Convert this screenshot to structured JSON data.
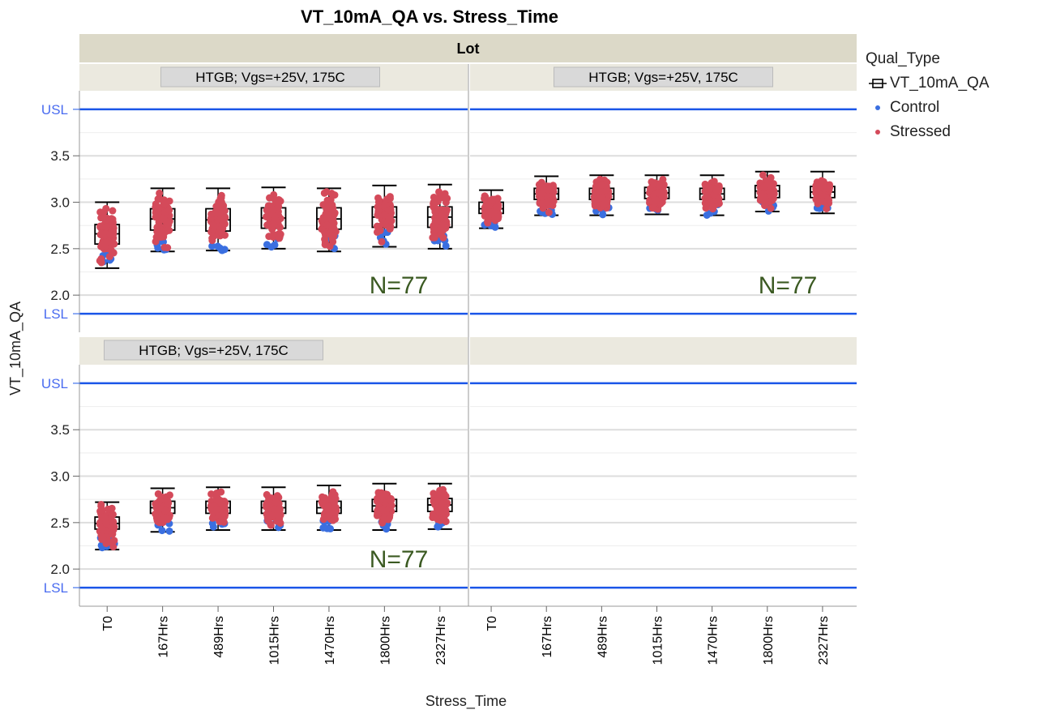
{
  "chart_data": {
    "type": "box",
    "title": "VT_10mA_QA vs. Stress_Time",
    "xlabel": "Stress_Time",
    "ylabel": "VT_10mA_QA",
    "group_header": "Lot",
    "categories": [
      "T0",
      "167Hrs",
      "489Hrs",
      "1015Hrs",
      "1470Hrs",
      "1800Hrs",
      "2327Hrs"
    ],
    "ylim": [
      1.6,
      4.2
    ],
    "yticks": [
      2.0,
      2.5,
      3.0,
      3.5
    ],
    "ytick_labels": [
      "2.0",
      "2.5",
      "3.0",
      "3.5"
    ],
    "ref_lines": [
      {
        "label": "USL",
        "value": 4.0
      },
      {
        "label": "LSL",
        "value": 1.8
      }
    ],
    "legend": {
      "title": "Qual_Type",
      "items": [
        {
          "label": "VT_10mA_QA",
          "kind": "box"
        },
        {
          "label": "Control",
          "color": "#3a6fe0"
        },
        {
          "label": "Stressed",
          "color": "#d44a5a"
        }
      ]
    },
    "panels": [
      {
        "label": "HTGB; Vgs=+25V, 175C",
        "annotation": "N=77",
        "boxes": [
          [
            2.29,
            2.55,
            2.66,
            2.76,
            3.0
          ],
          [
            2.47,
            2.7,
            2.82,
            2.93,
            3.15
          ],
          [
            2.48,
            2.69,
            2.81,
            2.93,
            3.15
          ],
          [
            2.5,
            2.72,
            2.83,
            2.94,
            3.16
          ],
          [
            2.47,
            2.71,
            2.82,
            2.94,
            3.15
          ],
          [
            2.52,
            2.73,
            2.84,
            2.95,
            3.18
          ],
          [
            2.5,
            2.73,
            2.84,
            2.95,
            3.19
          ]
        ]
      },
      {
        "label": "HTGB; Vgs=+25V, 175C",
        "annotation": "N=77",
        "boxes": [
          [
            2.72,
            2.88,
            2.93,
            3.0,
            3.13
          ],
          [
            2.86,
            3.03,
            3.09,
            3.15,
            3.28
          ],
          [
            2.86,
            3.03,
            3.09,
            3.15,
            3.29
          ],
          [
            2.87,
            3.04,
            3.1,
            3.16,
            3.29
          ],
          [
            2.86,
            3.03,
            3.09,
            3.15,
            3.29
          ],
          [
            2.9,
            3.05,
            3.12,
            3.18,
            3.33
          ],
          [
            2.88,
            3.05,
            3.11,
            3.17,
            3.33
          ]
        ]
      },
      {
        "label": "HTGB; Vgs=+25V, 175C",
        "annotation": "N=77",
        "boxes": [
          [
            2.21,
            2.43,
            2.49,
            2.56,
            2.72
          ],
          [
            2.4,
            2.6,
            2.66,
            2.73,
            2.87
          ],
          [
            2.42,
            2.6,
            2.66,
            2.73,
            2.88
          ],
          [
            2.42,
            2.6,
            2.66,
            2.73,
            2.88
          ],
          [
            2.42,
            2.6,
            2.66,
            2.73,
            2.9
          ],
          [
            2.42,
            2.62,
            2.68,
            2.75,
            2.92
          ],
          [
            2.43,
            2.62,
            2.69,
            2.76,
            2.92
          ]
        ]
      },
      {
        "label": "",
        "annotation": "",
        "boxes": []
      }
    ]
  }
}
